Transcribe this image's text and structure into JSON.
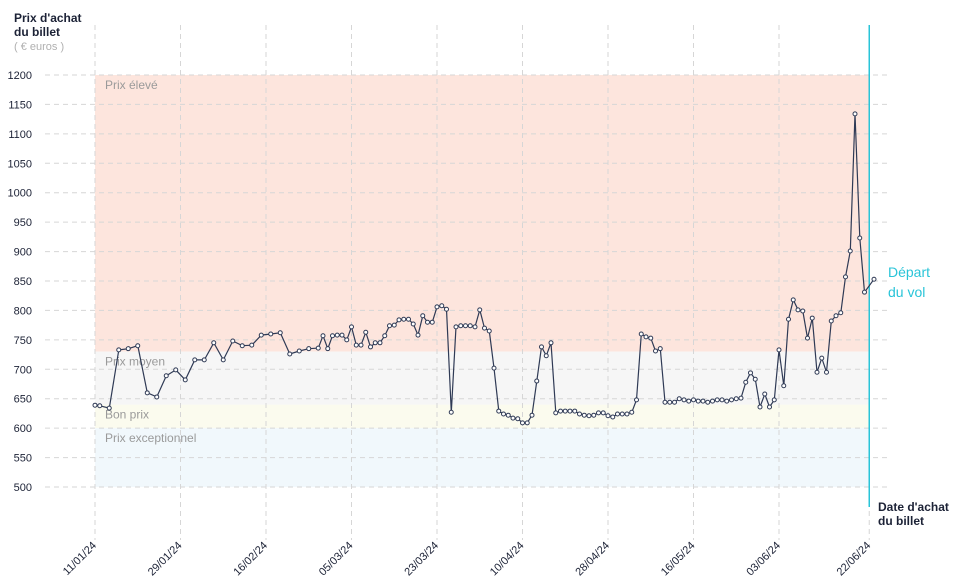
{
  "chart_data": {
    "type": "line",
    "y_label": "Prix d'achat du billet",
    "y_unit": "( € euros )",
    "x_label": "Date d'achat du billet",
    "color": "#2f3a55",
    "grid": true,
    "ylim": [
      500,
      1200
    ],
    "yticks": [
      500,
      550,
      600,
      650,
      700,
      750,
      800,
      850,
      900,
      950,
      1000,
      1050,
      1100,
      1150,
      1200
    ],
    "xlim": [
      0,
      164
    ],
    "xticks": [
      {
        "value": 0,
        "label": "11/01/24"
      },
      {
        "value": 18,
        "label": "29/01/24"
      },
      {
        "value": 36,
        "label": "16/02/24"
      },
      {
        "value": 54,
        "label": "05/03/24"
      },
      {
        "value": 72,
        "label": "23/03/24"
      },
      {
        "value": 90,
        "label": "10/04/24"
      },
      {
        "value": 108,
        "label": "28/04/24"
      },
      {
        "value": 126,
        "label": "16/05/24"
      },
      {
        "value": 144,
        "label": "03/06/24"
      },
      {
        "value": 163,
        "label": "22/06/24"
      }
    ],
    "bands": [
      {
        "label": "Prix élevé",
        "from": 730,
        "to": 1200,
        "color": "#fde5dd"
      },
      {
        "label": "Prix moyen",
        "from": 640,
        "to": 730,
        "color": "#f6f6f6"
      },
      {
        "label": "Bon prix",
        "from": 600,
        "to": 640,
        "color": "#fbfbee"
      },
      {
        "label": "Prix exceptionnel",
        "from": 500,
        "to": 600,
        "color": "#f1f8fc"
      }
    ],
    "annotation": {
      "text": "Départ du vol",
      "x": 163,
      "color": "#29c4d8"
    },
    "x": [
      0,
      1,
      3,
      5,
      7,
      9,
      11,
      13,
      15,
      17,
      19,
      21,
      23,
      25,
      27,
      29,
      31,
      33,
      35,
      37,
      39,
      41,
      43,
      45,
      47,
      48,
      49,
      50,
      51,
      52,
      53,
      54,
      55,
      56,
      57,
      58,
      59,
      60,
      61,
      62,
      63,
      64,
      65,
      66,
      67,
      68,
      69,
      70,
      71,
      72,
      73,
      74,
      75,
      76,
      77,
      78,
      79,
      80,
      81,
      82,
      83,
      84,
      85,
      86,
      87,
      88,
      89,
      90,
      91,
      92,
      93,
      94,
      95,
      96,
      97,
      98,
      99,
      100,
      101,
      102,
      103,
      104,
      105,
      106,
      107,
      108,
      109,
      110,
      111,
      112,
      113,
      114,
      115,
      116,
      117,
      118,
      119,
      120,
      121,
      122,
      123,
      124,
      125,
      126,
      127,
      128,
      129,
      130,
      131,
      132,
      133,
      134,
      135,
      136,
      137,
      138,
      139,
      140,
      141,
      142,
      143,
      144,
      145,
      146,
      147,
      148,
      149,
      150,
      151,
      152,
      153,
      154,
      155,
      156,
      157,
      158,
      159,
      160,
      161,
      162,
      164
    ],
    "values": [
      639,
      638,
      634,
      733,
      735,
      740,
      660,
      653,
      689,
      699,
      682,
      716,
      716,
      745,
      716,
      748,
      740,
      741,
      758,
      760,
      762,
      726,
      731,
      735,
      736,
      757,
      735,
      757,
      758,
      758,
      750,
      772,
      741,
      741,
      763,
      738,
      745,
      745,
      757,
      774,
      775,
      784,
      785,
      785,
      777,
      758,
      791,
      780,
      780,
      806,
      808,
      802,
      627,
      772,
      774,
      774,
      774,
      772,
      801,
      770,
      765,
      702,
      629,
      624,
      622,
      617,
      616,
      609,
      609,
      622,
      680,
      738,
      723,
      745,
      626,
      629,
      629,
      629,
      629,
      624,
      622,
      621,
      622,
      626,
      626,
      621,
      619,
      624,
      624,
      624,
      627,
      648,
      760,
      755,
      753,
      731,
      735,
      644,
      644,
      644,
      650,
      648,
      646,
      648,
      646,
      646,
      644,
      646,
      648,
      648,
      646,
      648,
      650,
      651,
      678,
      694,
      683,
      636,
      658,
      636,
      648,
      733,
      672,
      785,
      818,
      801,
      799,
      753,
      787,
      695,
      719,
      695,
      782,
      791,
      796,
      857,
      901,
      1134,
      923,
      831,
      853
    ]
  }
}
